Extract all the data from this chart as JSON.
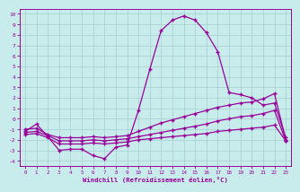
{
  "bg_color": "#c8ecec",
  "grid_color": "#aad4d4",
  "line_color": "#990099",
  "spine_color": "#660066",
  "x_ticks": [
    0,
    1,
    2,
    3,
    4,
    5,
    6,
    7,
    8,
    9,
    10,
    11,
    12,
    13,
    14,
    15,
    16,
    17,
    18,
    19,
    20,
    21,
    22,
    23
  ],
  "y_ticks": [
    -4,
    -3,
    -2,
    -1,
    0,
    1,
    2,
    3,
    4,
    5,
    6,
    7,
    8,
    9,
    10
  ],
  "xlim": [
    -0.5,
    23.5
  ],
  "ylim": [
    -4.5,
    10.5
  ],
  "xlabel": "Windchill (Refroidissement éolien,°C)",
  "curve1_x": [
    0,
    1,
    2,
    3,
    4,
    5,
    6,
    7,
    8,
    9,
    10,
    11,
    12,
    13,
    14,
    15,
    16,
    17,
    18,
    19,
    20,
    21,
    22,
    23
  ],
  "curve1_y": [
    -1.2,
    -0.5,
    -1.7,
    -3.0,
    -2.9,
    -2.9,
    -3.5,
    -3.8,
    -2.7,
    -2.5,
    0.8,
    4.7,
    8.4,
    9.4,
    9.8,
    9.4,
    8.2,
    6.4,
    2.5,
    2.3,
    2.0,
    1.3,
    1.5,
    -1.8
  ],
  "curve2_x": [
    0,
    1,
    2,
    3,
    4,
    5,
    6,
    7,
    8,
    9,
    10,
    11,
    12,
    13,
    14,
    15,
    16,
    17,
    18,
    19,
    20,
    21,
    22,
    23
  ],
  "curve2_y": [
    -1.0,
    -0.9,
    -1.5,
    -1.8,
    -1.8,
    -1.8,
    -1.7,
    -1.8,
    -1.7,
    -1.6,
    -1.2,
    -0.8,
    -0.4,
    -0.1,
    0.2,
    0.5,
    0.8,
    1.1,
    1.3,
    1.5,
    1.6,
    1.9,
    2.4,
    -2.0
  ],
  "curve3_x": [
    0,
    1,
    2,
    3,
    4,
    5,
    6,
    7,
    8,
    9,
    10,
    11,
    12,
    13,
    14,
    15,
    16,
    17,
    18,
    19,
    20,
    21,
    22,
    23
  ],
  "curve3_y": [
    -1.3,
    -1.2,
    -1.6,
    -2.1,
    -2.1,
    -2.1,
    -2.0,
    -2.1,
    -2.0,
    -1.9,
    -1.7,
    -1.5,
    -1.3,
    -1.1,
    -0.9,
    -0.7,
    -0.5,
    -0.2,
    0.0,
    0.2,
    0.3,
    0.5,
    0.8,
    -2.1
  ],
  "curve4_x": [
    0,
    1,
    2,
    3,
    4,
    5,
    6,
    7,
    8,
    9,
    10,
    11,
    12,
    13,
    14,
    15,
    16,
    17,
    18,
    19,
    20,
    21,
    22,
    23
  ],
  "curve4_y": [
    -1.5,
    -1.4,
    -1.8,
    -2.4,
    -2.4,
    -2.4,
    -2.3,
    -2.4,
    -2.3,
    -2.2,
    -2.0,
    -1.9,
    -1.8,
    -1.7,
    -1.6,
    -1.5,
    -1.4,
    -1.2,
    -1.1,
    -1.0,
    -0.9,
    -0.8,
    -0.6,
    -2.1
  ]
}
